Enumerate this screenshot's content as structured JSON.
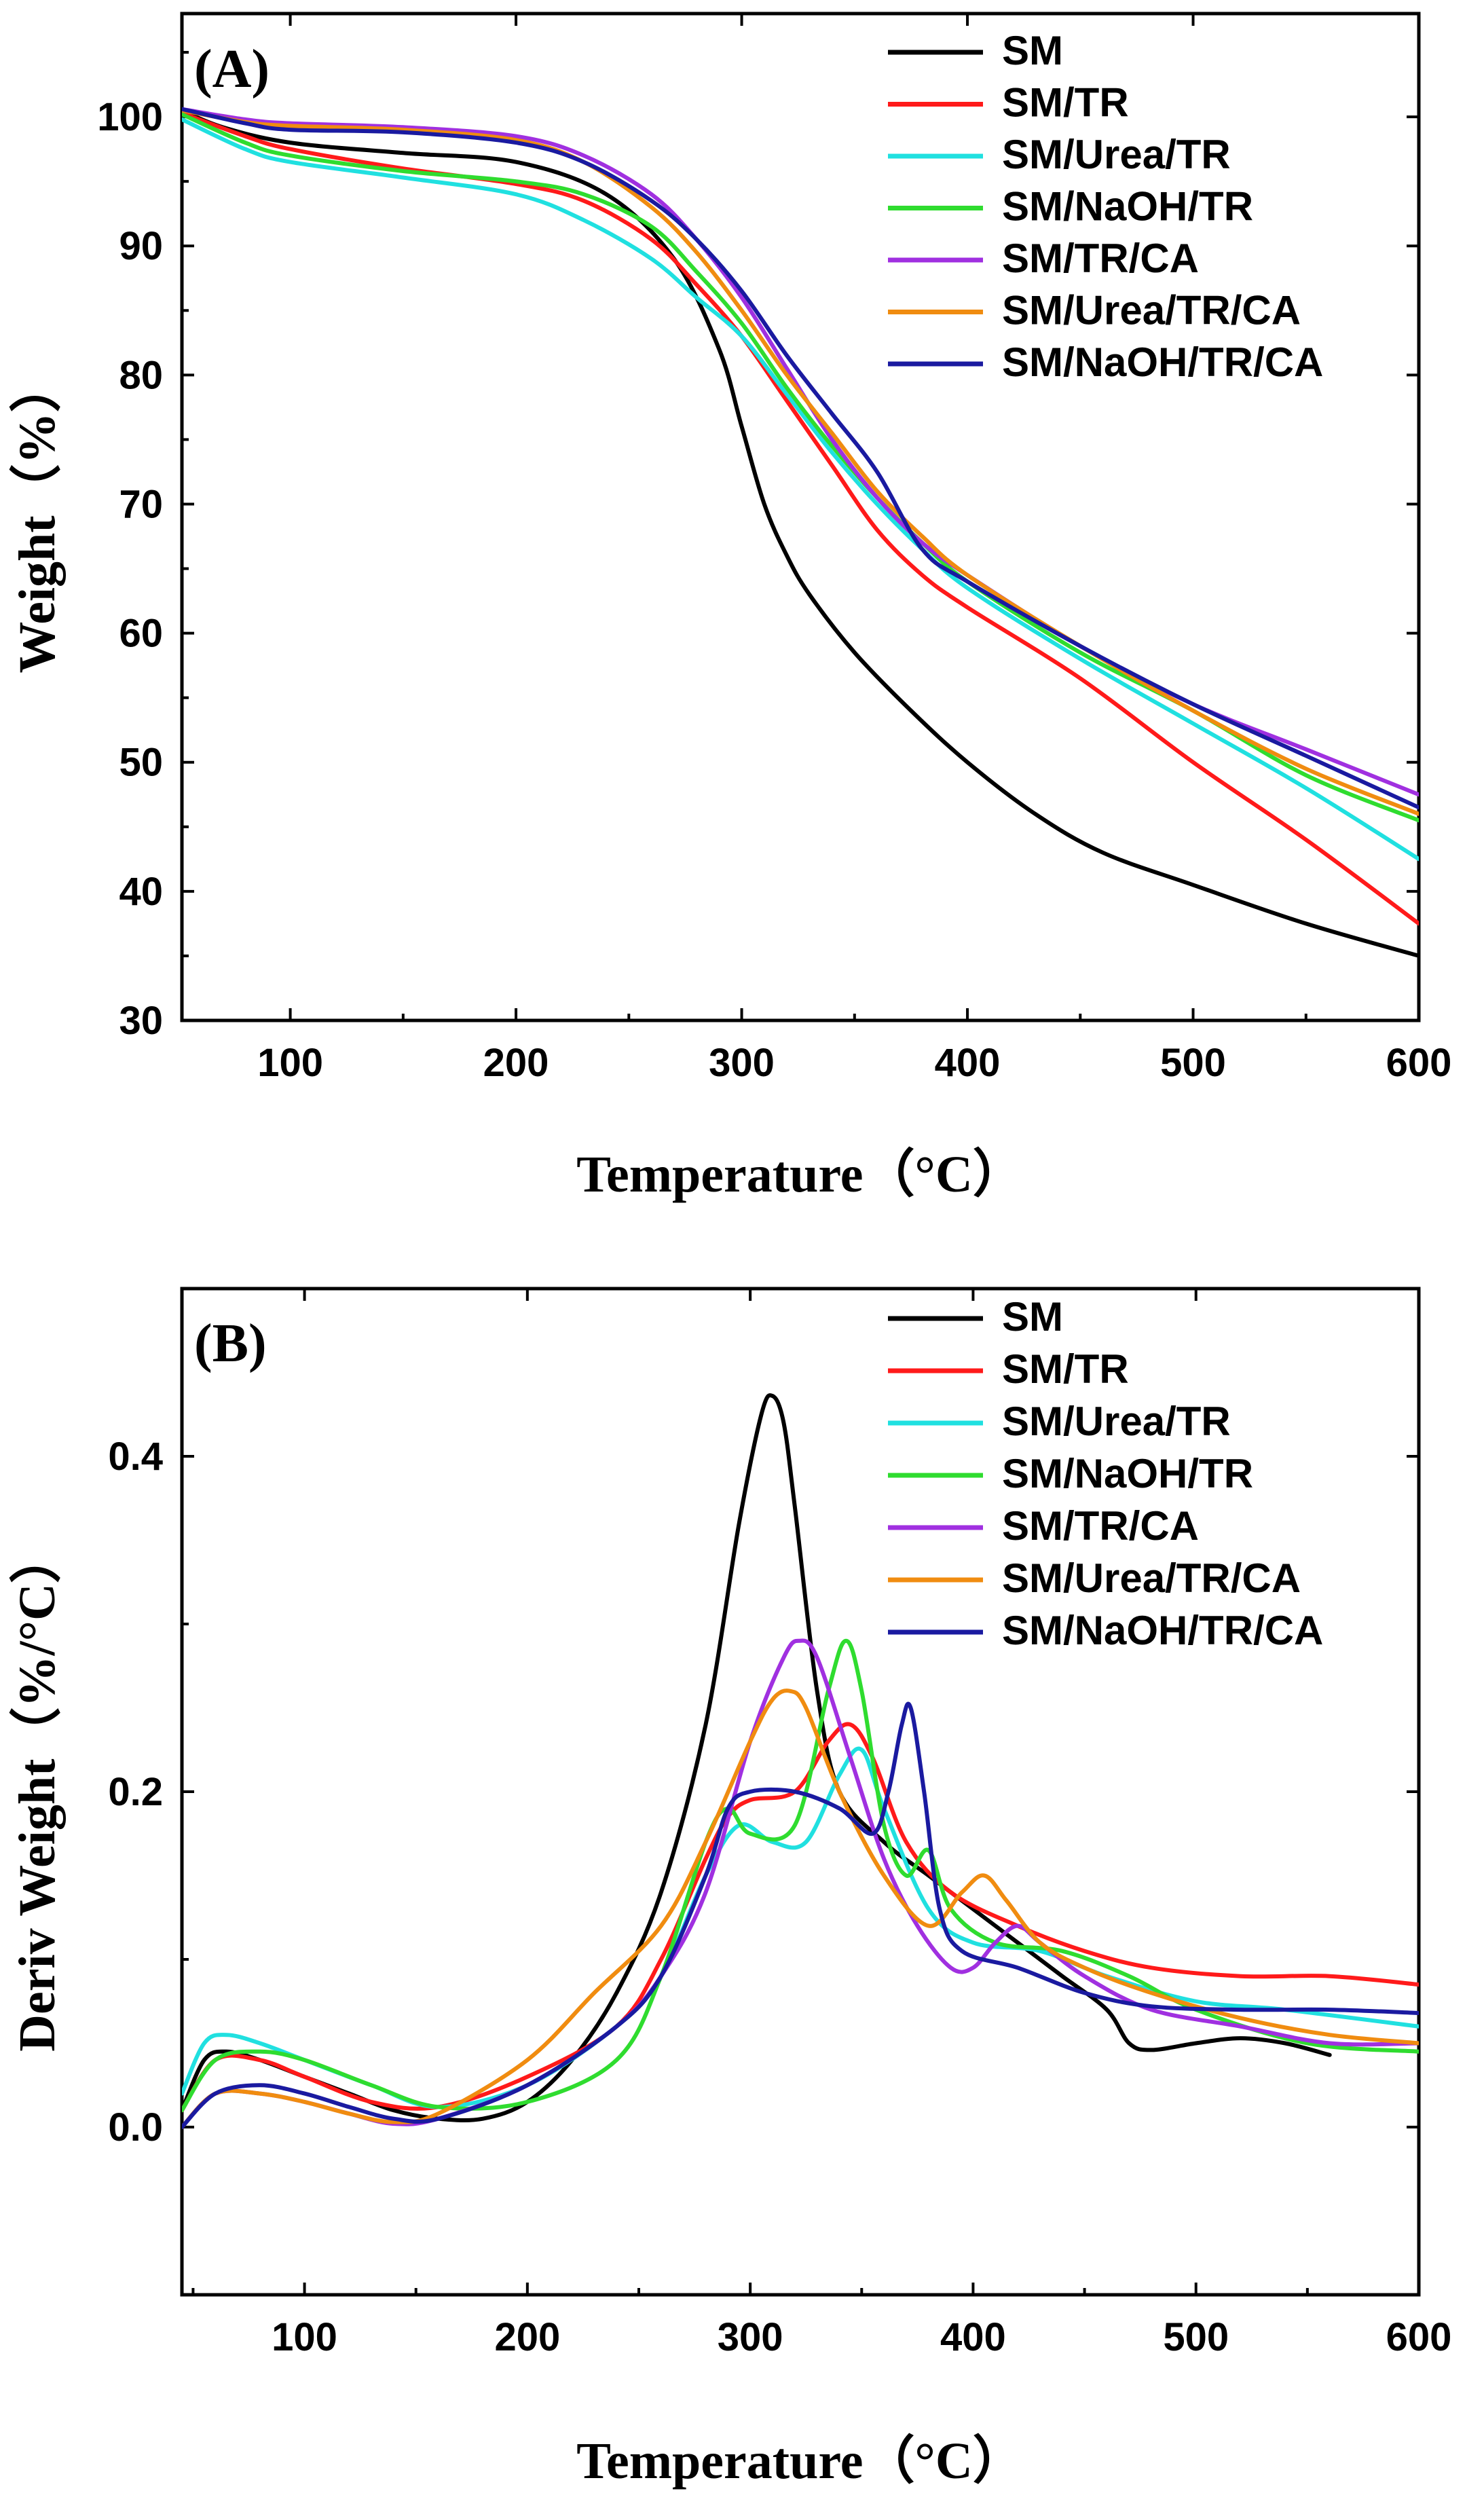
{
  "chart_data": [
    {
      "type": "line",
      "panel_label": "(A)",
      "xlabel": "Temperature（°C）",
      "ylabel": "Weight（%）",
      "xlim": [
        52,
        600
      ],
      "ylim": [
        30,
        108
      ],
      "xticks": [
        100,
        200,
        300,
        400,
        500,
        600
      ],
      "yticks": [
        30,
        40,
        50,
        60,
        70,
        80,
        90,
        100
      ],
      "legend_position": "top-right",
      "series": [
        {
          "name": "SM",
          "color": "#000000",
          "x": [
            52,
            70,
            100,
            150,
            200,
            240,
            270,
            290,
            300,
            310,
            320,
            330,
            350,
            375,
            400,
            430,
            460,
            500,
            550,
            600
          ],
          "y": [
            100.5,
            99.2,
            98.0,
            97.2,
            96.5,
            94.0,
            89.0,
            82.0,
            76.0,
            70.0,
            66.0,
            63.0,
            58.5,
            54.0,
            50.0,
            46.0,
            43.0,
            40.5,
            37.5,
            35.0
          ]
        },
        {
          "name": "SM/TR",
          "color": "#ff1a1a",
          "x": [
            52,
            80,
            100,
            150,
            200,
            230,
            260,
            280,
            300,
            320,
            340,
            360,
            380,
            400,
            450,
            500,
            550,
            600
          ],
          "y": [
            100.3,
            98.5,
            97.5,
            96.0,
            94.8,
            93.5,
            90.5,
            87.0,
            83.0,
            78.0,
            73.0,
            68.0,
            64.5,
            62.0,
            56.5,
            50.0,
            44.0,
            37.5
          ]
        },
        {
          "name": "SM/Urea/TR",
          "color": "#20e0e0",
          "x": [
            52,
            80,
            100,
            150,
            200,
            230,
            260,
            280,
            300,
            320,
            340,
            360,
            380,
            400,
            450,
            500,
            550,
            600
          ],
          "y": [
            99.8,
            97.5,
            96.5,
            95.3,
            94.0,
            92.0,
            89.0,
            86.0,
            83.0,
            78.5,
            74.0,
            70.0,
            66.5,
            63.5,
            58.0,
            53.0,
            48.0,
            42.5
          ]
        },
        {
          "name": "SM/NaOH/TR",
          "color": "#2fdc2f",
          "x": [
            52,
            80,
            100,
            150,
            200,
            230,
            260,
            280,
            300,
            320,
            340,
            360,
            380,
            400,
            450,
            500,
            550,
            600
          ],
          "y": [
            100.2,
            98.0,
            97.0,
            95.8,
            95.0,
            94.0,
            91.5,
            88.0,
            84.0,
            79.0,
            74.5,
            70.5,
            67.0,
            64.0,
            58.5,
            54.0,
            49.0,
            45.5
          ]
        },
        {
          "name": "SM/TR/CA",
          "color": "#a030e0",
          "x": [
            52,
            80,
            100,
            150,
            200,
            230,
            260,
            280,
            300,
            320,
            340,
            360,
            380,
            400,
            450,
            500,
            550,
            600
          ],
          "y": [
            100.6,
            99.8,
            99.5,
            99.2,
            98.5,
            97.0,
            94.0,
            90.5,
            86.0,
            80.5,
            75.0,
            70.5,
            67.0,
            64.5,
            59.0,
            54.5,
            51.0,
            47.5
          ]
        },
        {
          "name": "SM/Urea/TR/CA",
          "color": "#f08c10",
          "x": [
            52,
            80,
            100,
            150,
            200,
            230,
            260,
            280,
            300,
            320,
            340,
            360,
            380,
            400,
            450,
            500,
            550,
            600
          ],
          "y": [
            100.5,
            99.6,
            99.3,
            99.0,
            98.2,
            96.5,
            93.0,
            89.5,
            85.0,
            80.0,
            75.5,
            71.0,
            67.5,
            64.5,
            59.0,
            54.0,
            49.5,
            46.0
          ]
        },
        {
          "name": "SM/NaOH/TR/CA",
          "color": "#1a1aa0",
          "x": [
            52,
            80,
            100,
            150,
            200,
            230,
            260,
            280,
            300,
            320,
            340,
            360,
            380,
            400,
            450,
            500,
            550,
            600
          ],
          "y": [
            100.6,
            99.5,
            99.0,
            98.8,
            98.0,
            96.5,
            93.5,
            90.5,
            86.5,
            81.5,
            77.0,
            72.5,
            66.5,
            64.0,
            59.0,
            54.5,
            50.5,
            46.5
          ]
        }
      ]
    },
    {
      "type": "line",
      "panel_label": "(B)",
      "xlabel": "Temperature（°C）",
      "ylabel": "Deriv Weight（%/°C）",
      "xlim": [
        45,
        600
      ],
      "ylim": [
        -0.1,
        0.5
      ],
      "xticks": [
        100,
        200,
        300,
        400,
        500,
        600
      ],
      "yticks": [
        0.0,
        0.2,
        0.4
      ],
      "legend_position": "top-right",
      "series": [
        {
          "name": "SM",
          "color": "#000000",
          "x": [
            45,
            55,
            65,
            80,
            100,
            120,
            140,
            160,
            180,
            200,
            220,
            240,
            260,
            280,
            295,
            305,
            310,
            315,
            320,
            330,
            340,
            360,
            380,
            400,
            420,
            440,
            460,
            470,
            480,
            500,
            520,
            540,
            560
          ],
          "y": [
            0.01,
            0.04,
            0.045,
            0.04,
            0.03,
            0.02,
            0.01,
            0.005,
            0.005,
            0.015,
            0.04,
            0.08,
            0.14,
            0.24,
            0.36,
            0.425,
            0.436,
            0.42,
            0.37,
            0.26,
            0.2,
            0.17,
            0.15,
            0.13,
            0.11,
            0.09,
            0.07,
            0.05,
            0.046,
            0.05,
            0.053,
            0.05,
            0.043
          ]
        },
        {
          "name": "SM/TR",
          "color": "#ff1a1a",
          "x": [
            45,
            60,
            80,
            100,
            130,
            160,
            200,
            240,
            260,
            280,
            290,
            300,
            320,
            335,
            345,
            355,
            370,
            390,
            420,
            450,
            480,
            520,
            560,
            600
          ],
          "y": [
            0.01,
            0.04,
            0.04,
            0.03,
            0.015,
            0.012,
            0.03,
            0.06,
            0.1,
            0.16,
            0.185,
            0.195,
            0.2,
            0.23,
            0.24,
            0.22,
            0.17,
            0.14,
            0.12,
            0.105,
            0.095,
            0.09,
            0.09,
            0.085
          ]
        },
        {
          "name": "SM/Urea/TR",
          "color": "#20e0e0",
          "x": [
            45,
            55,
            65,
            80,
            100,
            130,
            160,
            200,
            240,
            260,
            280,
            295,
            310,
            325,
            340,
            350,
            360,
            380,
            400,
            430,
            460,
            500,
            540,
            600
          ],
          "y": [
            0.02,
            0.05,
            0.055,
            0.05,
            0.04,
            0.025,
            0.012,
            0.025,
            0.06,
            0.09,
            0.15,
            0.18,
            0.17,
            0.17,
            0.21,
            0.225,
            0.19,
            0.13,
            0.11,
            0.105,
            0.09,
            0.075,
            0.07,
            0.06
          ]
        },
        {
          "name": "SM/NaOH/TR",
          "color": "#2fdc2f",
          "x": [
            45,
            60,
            80,
            100,
            130,
            160,
            200,
            240,
            260,
            280,
            290,
            300,
            320,
            335,
            343,
            350,
            360,
            370,
            380,
            390,
            410,
            440,
            470,
            500,
            550,
            600
          ],
          "y": [
            0.01,
            0.04,
            0.045,
            0.04,
            0.025,
            0.012,
            0.015,
            0.04,
            0.09,
            0.17,
            0.19,
            0.175,
            0.18,
            0.26,
            0.29,
            0.26,
            0.18,
            0.15,
            0.165,
            0.13,
            0.11,
            0.105,
            0.09,
            0.07,
            0.05,
            0.045
          ]
        },
        {
          "name": "SM/TR/CA",
          "color": "#a030e0",
          "x": [
            45,
            60,
            80,
            100,
            120,
            140,
            160,
            200,
            240,
            260,
            280,
            300,
            315,
            322,
            330,
            345,
            360,
            375,
            390,
            400,
            410,
            420,
            430,
            450,
            480,
            520,
            560,
            600
          ],
          "y": [
            0.0,
            0.02,
            0.02,
            0.015,
            0.008,
            0.002,
            0.005,
            0.025,
            0.06,
            0.09,
            0.14,
            0.23,
            0.28,
            0.29,
            0.28,
            0.22,
            0.16,
            0.12,
            0.095,
            0.095,
            0.11,
            0.12,
            0.11,
            0.09,
            0.07,
            0.06,
            0.05,
            0.05
          ]
        },
        {
          "name": "SM/Urea/TR/CA",
          "color": "#f08c10",
          "x": [
            45,
            60,
            80,
            100,
            120,
            140,
            160,
            200,
            230,
            260,
            280,
            300,
            310,
            318,
            325,
            340,
            360,
            380,
            395,
            405,
            415,
            430,
            450,
            480,
            520,
            560,
            600
          ],
          "y": [
            0.0,
            0.02,
            0.02,
            0.015,
            0.008,
            0.003,
            0.008,
            0.04,
            0.08,
            0.12,
            0.17,
            0.23,
            0.255,
            0.26,
            0.25,
            0.2,
            0.15,
            0.12,
            0.14,
            0.15,
            0.135,
            0.11,
            0.095,
            0.08,
            0.065,
            0.055,
            0.05
          ]
        },
        {
          "name": "SM/NaOH/TR/CA",
          "color": "#1a1aa0",
          "x": [
            45,
            60,
            80,
            100,
            120,
            140,
            160,
            200,
            240,
            260,
            280,
            290,
            300,
            320,
            340,
            355,
            362,
            368,
            372,
            378,
            385,
            395,
            420,
            450,
            480,
            520,
            560,
            600
          ],
          "y": [
            0.0,
            0.02,
            0.025,
            0.02,
            0.012,
            0.005,
            0.005,
            0.025,
            0.06,
            0.09,
            0.15,
            0.19,
            0.2,
            0.2,
            0.19,
            0.175,
            0.2,
            0.24,
            0.25,
            0.2,
            0.13,
            0.105,
            0.095,
            0.08,
            0.072,
            0.07,
            0.07,
            0.068
          ]
        }
      ]
    }
  ]
}
